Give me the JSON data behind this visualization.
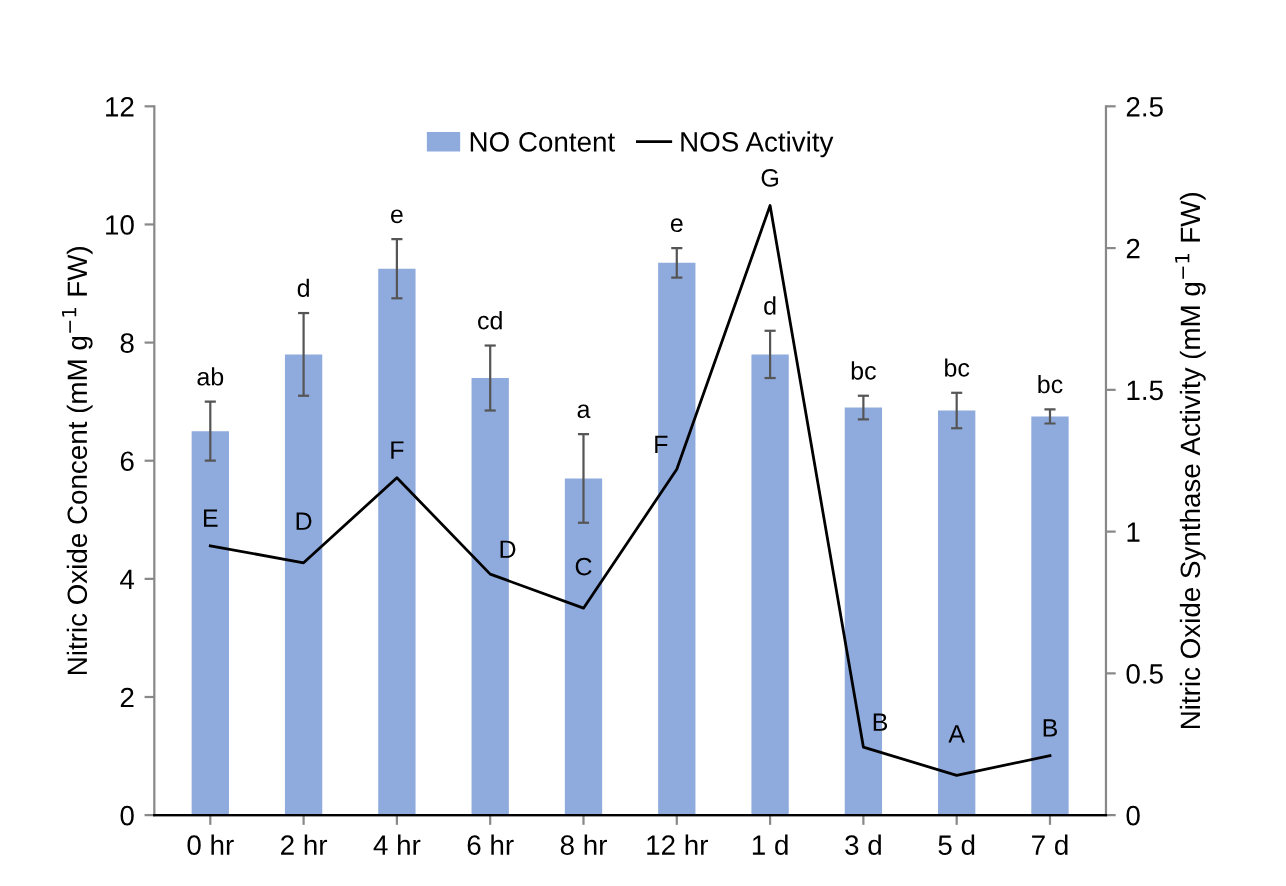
{
  "chart_data": {
    "type": "bar",
    "categories": [
      "0 hr",
      "2 hr",
      "4 hr",
      "6 hr",
      "8 hr",
      "12 hr",
      "1 d",
      "3 d",
      "5 d",
      "7 d"
    ],
    "ylabel": "Nitric Oxide Concent (mM g$^{−1}$ FW)",
    "y2label": "Nitric Oxide Synthase Activity (mM g$^{−1}$ FW)",
    "ylim": [
      0,
      12
    ],
    "yticks": [
      0,
      2,
      4,
      6,
      8,
      10,
      12
    ],
    "y2lim": [
      0,
      2.5
    ],
    "y2ticks": [
      0,
      0.5,
      1,
      1.5,
      2,
      2.5
    ],
    "grid": false,
    "legend": "top",
    "marker": "none",
    "line_style": "solid",
    "series": [
      {
        "name": "NO Content",
        "color": "#8faadc",
        "values": [
          6.5,
          7.8,
          9.25,
          7.4,
          5.7,
          9.35,
          7.8,
          6.9,
          6.85,
          6.75
        ],
        "errors": [
          0.5,
          0.7,
          0.5,
          0.55,
          0.75,
          0.25,
          0.4,
          0.2,
          0.3,
          0.12
        ],
        "value_labels": [
          "ab",
          "d",
          "e",
          "cd",
          "a",
          "e",
          "d",
          "bc",
          "bc",
          "bc"
        ]
      },
      {
        "name": "NOS Activity",
        "type": "line",
        "axis": "y2",
        "color": "#000000",
        "values": [
          0.95,
          0.89,
          1.19,
          0.85,
          0.73,
          1.22,
          2.15,
          0.24,
          0.14,
          0.21
        ],
        "value_labels": [
          "E",
          "D",
          "F",
          "D",
          "C",
          "F",
          "G",
          "B",
          "A",
          "B"
        ]
      }
    ]
  }
}
